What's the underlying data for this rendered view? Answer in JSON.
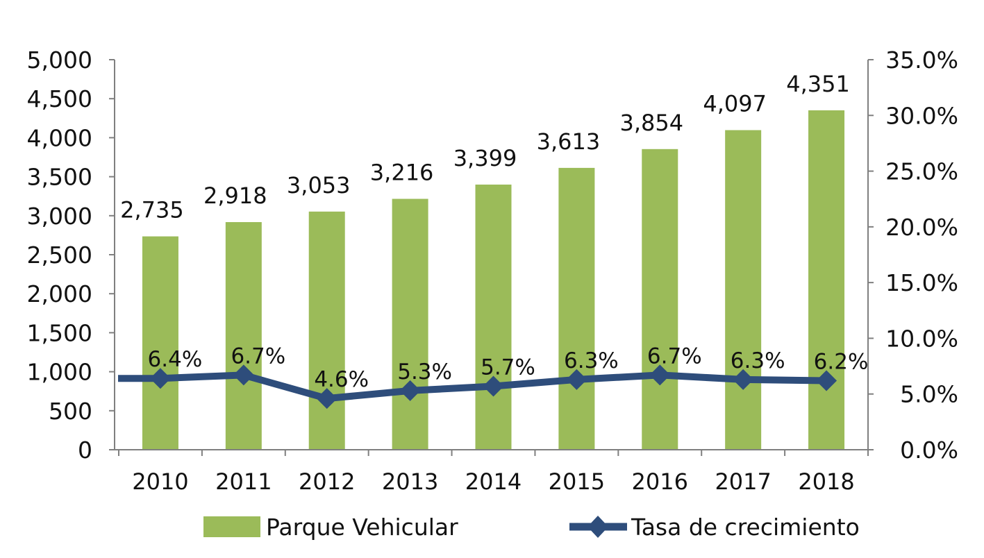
{
  "chart_data": {
    "type": "bar",
    "categories": [
      "2010",
      "2011",
      "2012",
      "2013",
      "2014",
      "2015",
      "2016",
      "2017",
      "2018"
    ],
    "series": [
      {
        "name": "Parque Vehicular",
        "type": "bar",
        "axis": "left",
        "color": "#9bbb59",
        "values": [
          2735,
          2918,
          3053,
          3216,
          3399,
          3613,
          3854,
          4097,
          4351
        ],
        "labels": [
          "2,735",
          "2,918",
          "3,053",
          "3,216",
          "3,399",
          "3,613",
          "3,854",
          "4,097",
          "4,351"
        ]
      },
      {
        "name": "Tasa de crecimiento",
        "type": "line",
        "axis": "right",
        "color": "#2e4d7b",
        "marker": "diamond",
        "values": [
          6.4,
          6.7,
          4.6,
          5.3,
          5.7,
          6.3,
          6.7,
          6.3,
          6.2
        ],
        "labels": [
          "6.4%",
          "6.7%",
          "4.6%",
          "5.3%",
          "5.7%",
          "6.3%",
          "6.7%",
          "6.3%",
          "6.2%"
        ]
      }
    ],
    "y_left": {
      "min": 0,
      "max": 5000,
      "ticks": [
        "0",
        "500",
        "1,000",
        "1,500",
        "2,000",
        "2,500",
        "3,000",
        "3,500",
        "4,000",
        "4,500",
        "5,000"
      ]
    },
    "y_right": {
      "min": 0,
      "max": 35,
      "ticks": [
        "0.0%",
        "5.0%",
        "10.0%",
        "15.0%",
        "20.0%",
        "25.0%",
        "30.0%",
        "35.0%"
      ]
    },
    "grid": false,
    "legend_position": "bottom"
  }
}
